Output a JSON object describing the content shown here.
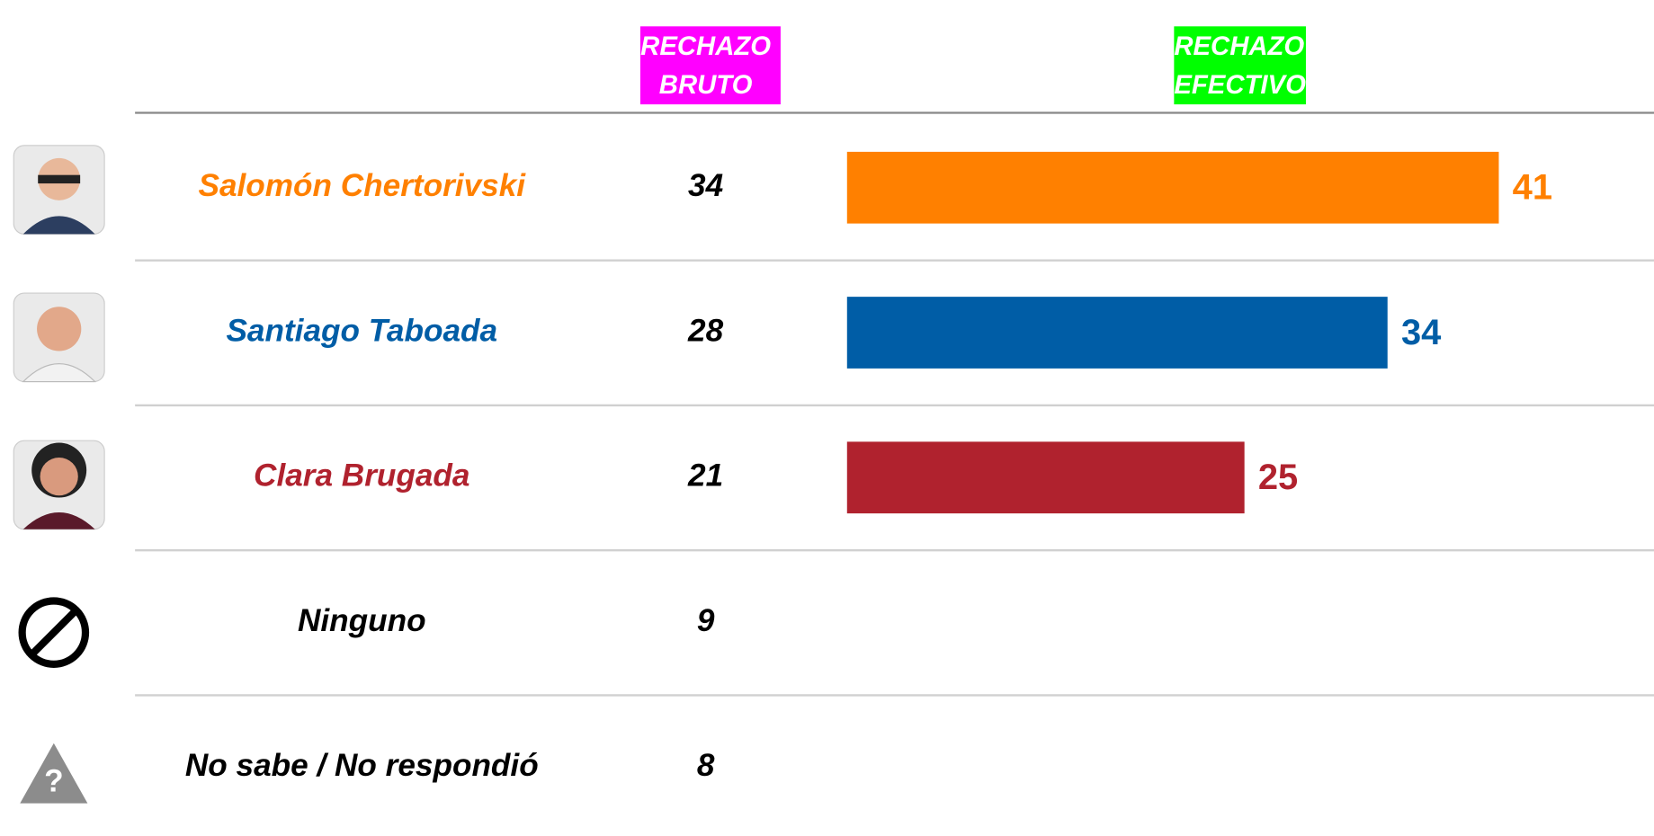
{
  "chart_data": {
    "type": "bar",
    "columns": [
      "RECHAZO BRUTO",
      "RECHAZO EFECTIVO"
    ],
    "column_colors": [
      "#ff00ff",
      "#00ff00"
    ],
    "categories": [
      "Salomón Chertorivski",
      "Santiago Taboada",
      "Clara Brugada",
      "Ninguno",
      "No sabe / No respondió"
    ],
    "colors": [
      "#ff8000",
      "#005da6",
      "#b0222e",
      "#000000",
      "#000000"
    ],
    "raw_values": [
      34,
      28,
      21,
      9,
      8
    ],
    "values": [
      41,
      34,
      25,
      null,
      null
    ]
  }
}
